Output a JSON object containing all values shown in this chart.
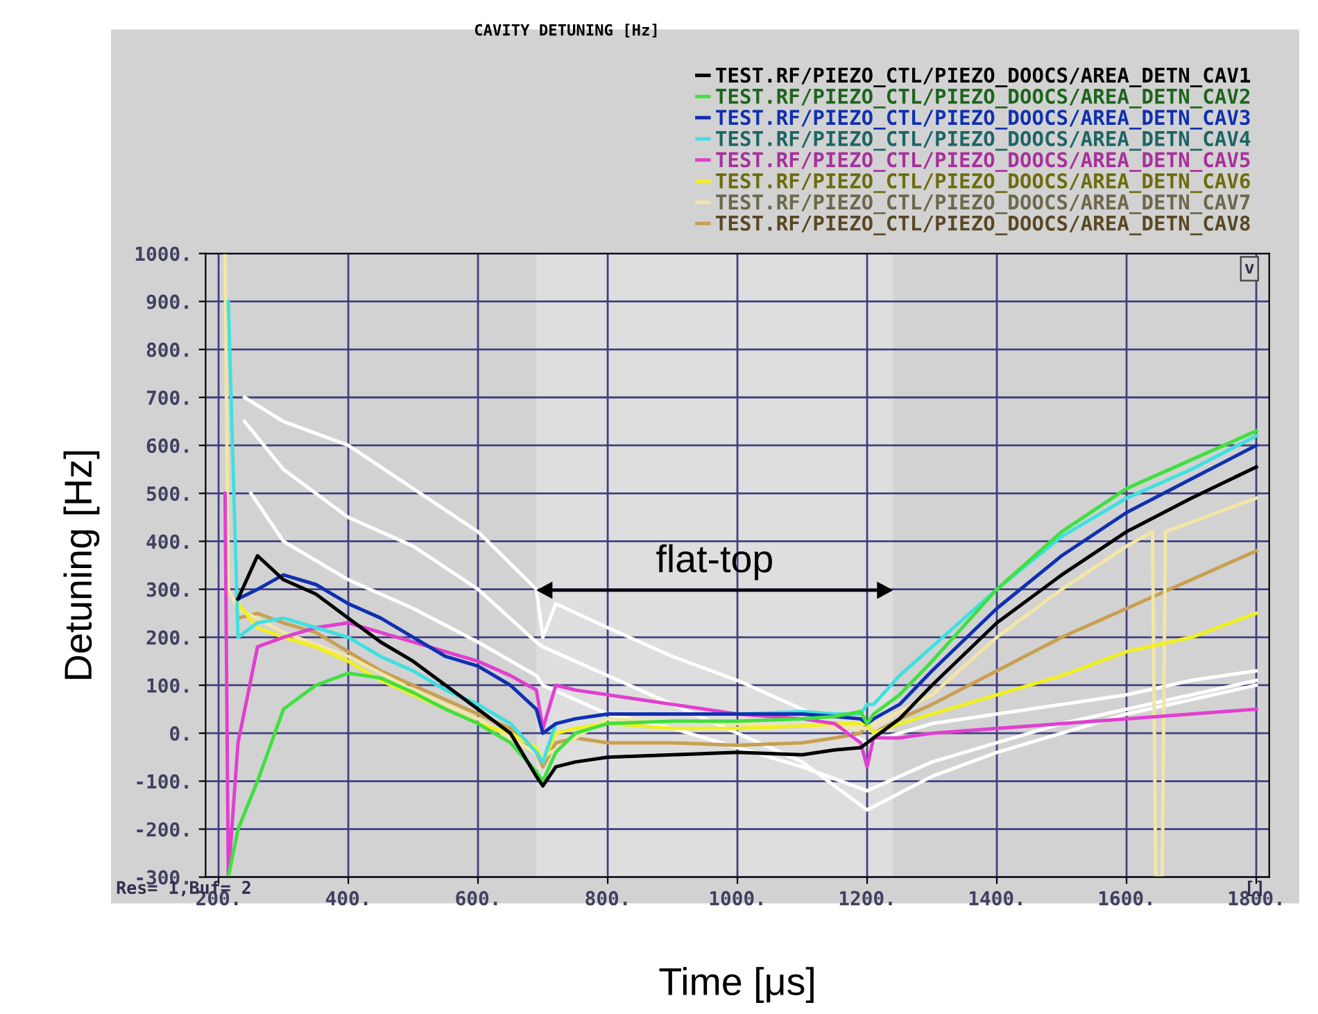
{
  "chart_data": {
    "type": "line",
    "title": "CAVITY DETUNING [Hz]",
    "xlabel": "Time [μs]",
    "ylabel": "Detuning [Hz]",
    "x": [
      210,
      215,
      230,
      260,
      300,
      350,
      400,
      450,
      500,
      550,
      600,
      650,
      690,
      700,
      720,
      750,
      800,
      900,
      1000,
      1100,
      1150,
      1190,
      1200,
      1210,
      1250,
      1300,
      1400,
      1500,
      1600,
      1700,
      1800
    ],
    "xlim": [
      180,
      1820
    ],
    "ylim": [
      -300,
      1000
    ],
    "xticks": [
      {
        "value": 200,
        "label": "200."
      },
      {
        "value": 400,
        "label": "400."
      },
      {
        "value": 600,
        "label": "600."
      },
      {
        "value": 800,
        "label": "800."
      },
      {
        "value": 1000,
        "label": "1000."
      },
      {
        "value": 1200,
        "label": "1200."
      },
      {
        "value": 1400,
        "label": "1400."
      },
      {
        "value": 1600,
        "label": "1600."
      },
      {
        "value": 1800,
        "label": "1800."
      }
    ],
    "yticks": [
      {
        "value": 1000,
        "label": "1000."
      },
      {
        "value": 900,
        "label": "900."
      },
      {
        "value": 800,
        "label": "800."
      },
      {
        "value": 700,
        "label": "700."
      },
      {
        "value": 600,
        "label": "600."
      },
      {
        "value": 500,
        "label": "500."
      },
      {
        "value": 400,
        "label": "400."
      },
      {
        "value": 300,
        "label": "300."
      },
      {
        "value": 200,
        "label": "200."
      },
      {
        "value": 100,
        "label": "100."
      },
      {
        "value": 0,
        "label": "0."
      },
      {
        "value": -100,
        "label": "-100."
      },
      {
        "value": -200,
        "label": "-200."
      },
      {
        "value": -300,
        "label": "-300."
      }
    ],
    "grid": true,
    "legend": "top right",
    "marker": "none",
    "line_style": "solid",
    "series": [
      {
        "color": "#ffffff",
        "x": [
          240,
          300,
          400,
          500,
          600,
          690,
          700,
          720,
          800,
          900,
          1000,
          1100,
          1200,
          1250,
          1300,
          1400,
          1500,
          1600,
          1700,
          1800
        ],
        "values": [
          700,
          650,
          600,
          510,
          420,
          300,
          200,
          270,
          220,
          160,
          110,
          50,
          -20,
          0,
          20,
          40,
          60,
          80,
          110,
          130
        ]
      },
      {
        "color": "#ffffff",
        "x": [
          240,
          300,
          400,
          500,
          600,
          690,
          700,
          800,
          900,
          1000,
          1100,
          1200,
          1300,
          1400,
          1500,
          1600,
          1700,
          1800
        ],
        "values": [
          650,
          550,
          450,
          390,
          300,
          190,
          180,
          120,
          60,
          0,
          -60,
          -160,
          -90,
          -40,
          0,
          40,
          70,
          100
        ]
      },
      {
        "color": "#ffffff",
        "x": [
          250,
          300,
          400,
          500,
          600,
          690,
          700,
          800,
          900,
          1000,
          1100,
          1200,
          1300,
          1400,
          1500,
          1600,
          1700,
          1800
        ],
        "values": [
          500,
          400,
          320,
          260,
          190,
          120,
          100,
          40,
          10,
          -30,
          -70,
          -120,
          -60,
          -20,
          20,
          50,
          80,
          110
        ]
      },
      {
        "name": "TEST.RF/PIEZO_CTL/PIEZO_DOOCS/AREA_DETN_CAV8",
        "color": "#c8a050",
        "values": [
          null,
          null,
          240,
          250,
          230,
          210,
          170,
          130,
          100,
          70,
          40,
          10,
          -40,
          -70,
          -20,
          -10,
          -20,
          -20,
          -25,
          -20,
          -10,
          0,
          20,
          0,
          30,
          60,
          130,
          200,
          260,
          320,
          380
        ]
      },
      {
        "name": "TEST.RF/PIEZO_CTL/PIEZO_DOOCS/AREA_DETN_CAV7",
        "color": "#f2e6a6",
        "x": [
          210,
          215,
          230,
          300,
          400,
          500,
          600,
          700,
          800,
          1000,
          1200,
          1300,
          1400,
          1500,
          1600,
          1640,
          1645,
          1655,
          1660,
          1700,
          1800
        ],
        "values": [
          1000,
          300,
          260,
          210,
          160,
          90,
          30,
          -50,
          30,
          20,
          10,
          80,
          200,
          300,
          390,
          420,
          -300,
          -300,
          420,
          440,
          490
        ]
      },
      {
        "name": "TEST.RF/PIEZO_CTL/PIEZO_DOOCS/AREA_DETN_CAV6",
        "color": "#f0f020",
        "values": [
          null,
          null,
          270,
          220,
          200,
          180,
          150,
          110,
          80,
          50,
          20,
          0,
          -30,
          -60,
          0,
          10,
          20,
          10,
          10,
          15,
          20,
          20,
          20,
          0,
          20,
          40,
          80,
          120,
          170,
          200,
          250
        ]
      },
      {
        "name": "TEST.RF/PIEZO_CTL/PIEZO_DOOCS/AREA_DETN_CAV5",
        "color": "#e040d0",
        "values": [
          500,
          -300,
          -20,
          180,
          200,
          220,
          230,
          210,
          190,
          170,
          150,
          120,
          90,
          10,
          100,
          90,
          80,
          60,
          40,
          30,
          20,
          -20,
          -70,
          -10,
          -10,
          0,
          10,
          20,
          30,
          40,
          50
        ]
      },
      {
        "name": "TEST.RF/PIEZO_CTL/PIEZO_DOOCS/AREA_DETN_CAV4",
        "color": "#40e0e0",
        "values": [
          null,
          900,
          200,
          230,
          240,
          220,
          200,
          160,
          130,
          90,
          60,
          20,
          -40,
          -60,
          20,
          30,
          40,
          40,
          40,
          45,
          40,
          40,
          60,
          60,
          120,
          180,
          300,
          410,
          490,
          550,
          620
        ]
      },
      {
        "name": "TEST.RF/PIEZO_CTL/PIEZO_DOOCS/AREA_DETN_CAV3",
        "color": "#1030b0",
        "values": [
          null,
          null,
          280,
          300,
          330,
          310,
          270,
          240,
          200,
          160,
          140,
          100,
          50,
          0,
          20,
          30,
          40,
          40,
          40,
          40,
          35,
          30,
          20,
          30,
          60,
          130,
          260,
          370,
          460,
          530,
          600
        ]
      },
      {
        "name": "TEST.RF/PIEZO_CTL/PIEZO_DOOCS/AREA_DETN_CAV2",
        "color": "#40e040",
        "values": [
          null,
          -300,
          -200,
          -100,
          50,
          100,
          125,
          115,
          85,
          50,
          20,
          -20,
          -80,
          -100,
          -40,
          0,
          20,
          25,
          25,
          30,
          35,
          45,
          20,
          40,
          80,
          150,
          300,
          420,
          510,
          570,
          630
        ]
      },
      {
        "name": "TEST.RF/PIEZO_CTL/PIEZO_DOOCS/AREA_DETN_CAV1",
        "color": "#000000",
        "values": [
          null,
          null,
          280,
          370,
          320,
          290,
          240,
          190,
          150,
          100,
          50,
          0,
          -90,
          -110,
          -70,
          -60,
          -50,
          -45,
          -40,
          -45,
          -35,
          -30,
          -20,
          -10,
          30,
          100,
          230,
          330,
          420,
          490,
          555
        ]
      }
    ],
    "bands": [
      {
        "axis": "x",
        "from": 690,
        "to": 1240,
        "label": "flat-top",
        "color": "#dedede"
      }
    ],
    "annotations": [
      "Res= 1,Buf= 2",
      "[]",
      "v"
    ]
  }
}
